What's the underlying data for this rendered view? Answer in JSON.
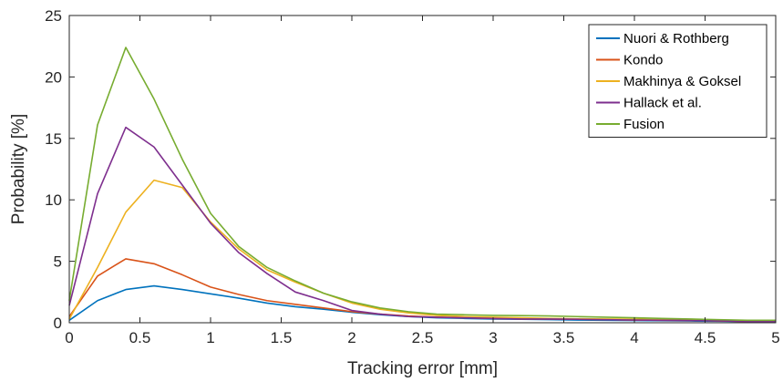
{
  "chart_data": {
    "type": "line",
    "title": "",
    "xlabel": "Tracking error [mm]",
    "ylabel": "Probability [%]",
    "xlim": [
      0,
      5
    ],
    "ylim": [
      0,
      25
    ],
    "xticks": [
      0,
      0.5,
      1,
      1.5,
      2,
      2.5,
      3,
      3.5,
      4,
      4.5,
      5
    ],
    "xtick_labels": [
      "0",
      "0.5",
      "1",
      "1.5",
      "2",
      "2.5",
      "3",
      "3.5",
      "4",
      "4.5",
      "5"
    ],
    "yticks": [
      0,
      5,
      10,
      15,
      20,
      25
    ],
    "ytick_labels": [
      "0",
      "5",
      "10",
      "15",
      "20",
      "25"
    ],
    "grid": false,
    "legend_position": "top-right",
    "x": [
      0,
      0.2,
      0.4,
      0.6,
      0.8,
      1.0,
      1.2,
      1.4,
      1.6,
      1.8,
      2.0,
      2.2,
      2.4,
      2.6,
      2.8,
      3.0,
      3.2,
      3.4,
      3.6,
      3.8,
      4.0,
      4.2,
      4.4,
      4.6,
      4.8,
      5.0
    ],
    "series": [
      {
        "name": "Nuori & Rothberg",
        "color": "#0072BD",
        "values": [
          0.2,
          1.8,
          2.7,
          3.0,
          2.7,
          2.35,
          2.0,
          1.6,
          1.3,
          1.1,
          0.85,
          0.65,
          0.5,
          0.4,
          0.35,
          0.3,
          0.28,
          0.25,
          0.22,
          0.2,
          0.18,
          0.16,
          0.14,
          0.12,
          0.1,
          0.1
        ]
      },
      {
        "name": "Kondo",
        "color": "#D95319",
        "values": [
          0.5,
          3.8,
          5.2,
          4.8,
          3.9,
          2.9,
          2.3,
          1.8,
          1.5,
          1.2,
          0.9,
          0.7,
          0.55,
          0.45,
          0.4,
          0.35,
          0.3,
          0.3,
          0.28,
          0.25,
          0.22,
          0.2,
          0.18,
          0.15,
          0.1,
          0.1
        ]
      },
      {
        "name": "Makhinya & Goksel",
        "color": "#EDB120",
        "values": [
          0.3,
          4.5,
          9.0,
          11.6,
          11.0,
          8.2,
          6.0,
          4.3,
          3.3,
          2.4,
          1.6,
          1.1,
          0.8,
          0.6,
          0.5,
          0.45,
          0.4,
          0.35,
          0.32,
          0.3,
          0.28,
          0.25,
          0.22,
          0.2,
          0.15,
          0.1
        ]
      },
      {
        "name": "Hallack et al.",
        "color": "#7E2F8E",
        "values": [
          1.4,
          10.5,
          15.9,
          14.3,
          11.2,
          8.1,
          5.7,
          4.0,
          2.5,
          1.8,
          1.0,
          0.7,
          0.5,
          0.45,
          0.4,
          0.35,
          0.3,
          0.3,
          0.28,
          0.25,
          0.22,
          0.2,
          0.18,
          0.15,
          0.1,
          0.1
        ]
      },
      {
        "name": "Fusion",
        "color": "#77AC30",
        "values": [
          1.8,
          16.1,
          22.4,
          18.2,
          13.3,
          8.9,
          6.2,
          4.5,
          3.4,
          2.4,
          1.7,
          1.2,
          0.9,
          0.7,
          0.65,
          0.6,
          0.58,
          0.55,
          0.5,
          0.45,
          0.4,
          0.35,
          0.3,
          0.25,
          0.2,
          0.2
        ]
      }
    ]
  }
}
